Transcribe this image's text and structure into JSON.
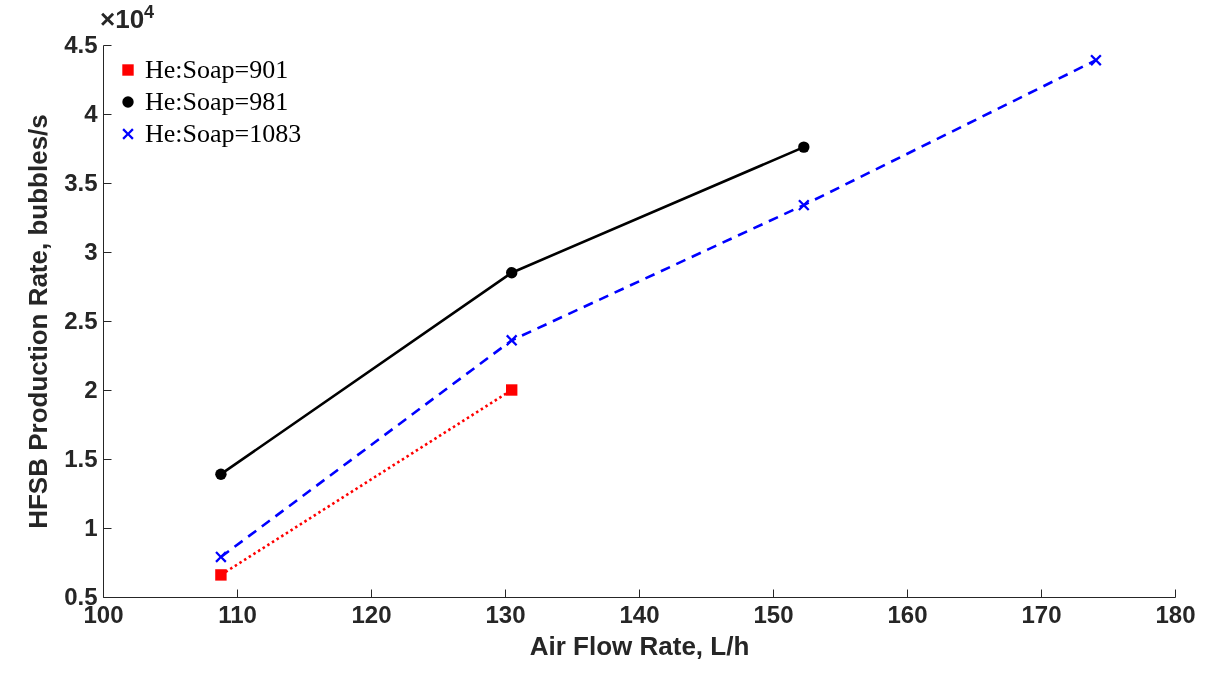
{
  "chart_data": {
    "type": "line",
    "xlabel": "Air Flow Rate, L/h",
    "ylabel": "HFSB Production Rate, bubbles/s",
    "annotations": [
      "×10$^{4}$"
    ],
    "xlim": [
      100,
      180
    ],
    "xticks": [
      100,
      110,
      120,
      130,
      140,
      150,
      160,
      170,
      180
    ],
    "ylim": [
      0.5,
      4.5
    ],
    "yticks": [
      0.5,
      1,
      1.5,
      2,
      2.5,
      3,
      3.5,
      4,
      4.5
    ],
    "grid": false,
    "legend": "top left",
    "series": [
      {
        "name": "He:Soap=901",
        "color": "#ff0000",
        "marker": "square",
        "line_style": "dotted",
        "x": [
          108.8,
          130.5
        ],
        "values": [
          0.66,
          2.0
        ]
      },
      {
        "name": "He:Soap=981",
        "color": "#000000",
        "marker": "circle",
        "line_style": "solid",
        "x": [
          108.8,
          130.5,
          152.3
        ],
        "values": [
          1.39,
          2.85,
          3.76
        ]
      },
      {
        "name": "He:Soap=1083",
        "color": "#0000ff",
        "marker": "cross",
        "line_style": "dashed",
        "x": [
          108.8,
          130.5,
          152.3,
          174.1
        ],
        "values": [
          0.79,
          2.36,
          3.34,
          4.39
        ]
      }
    ]
  }
}
